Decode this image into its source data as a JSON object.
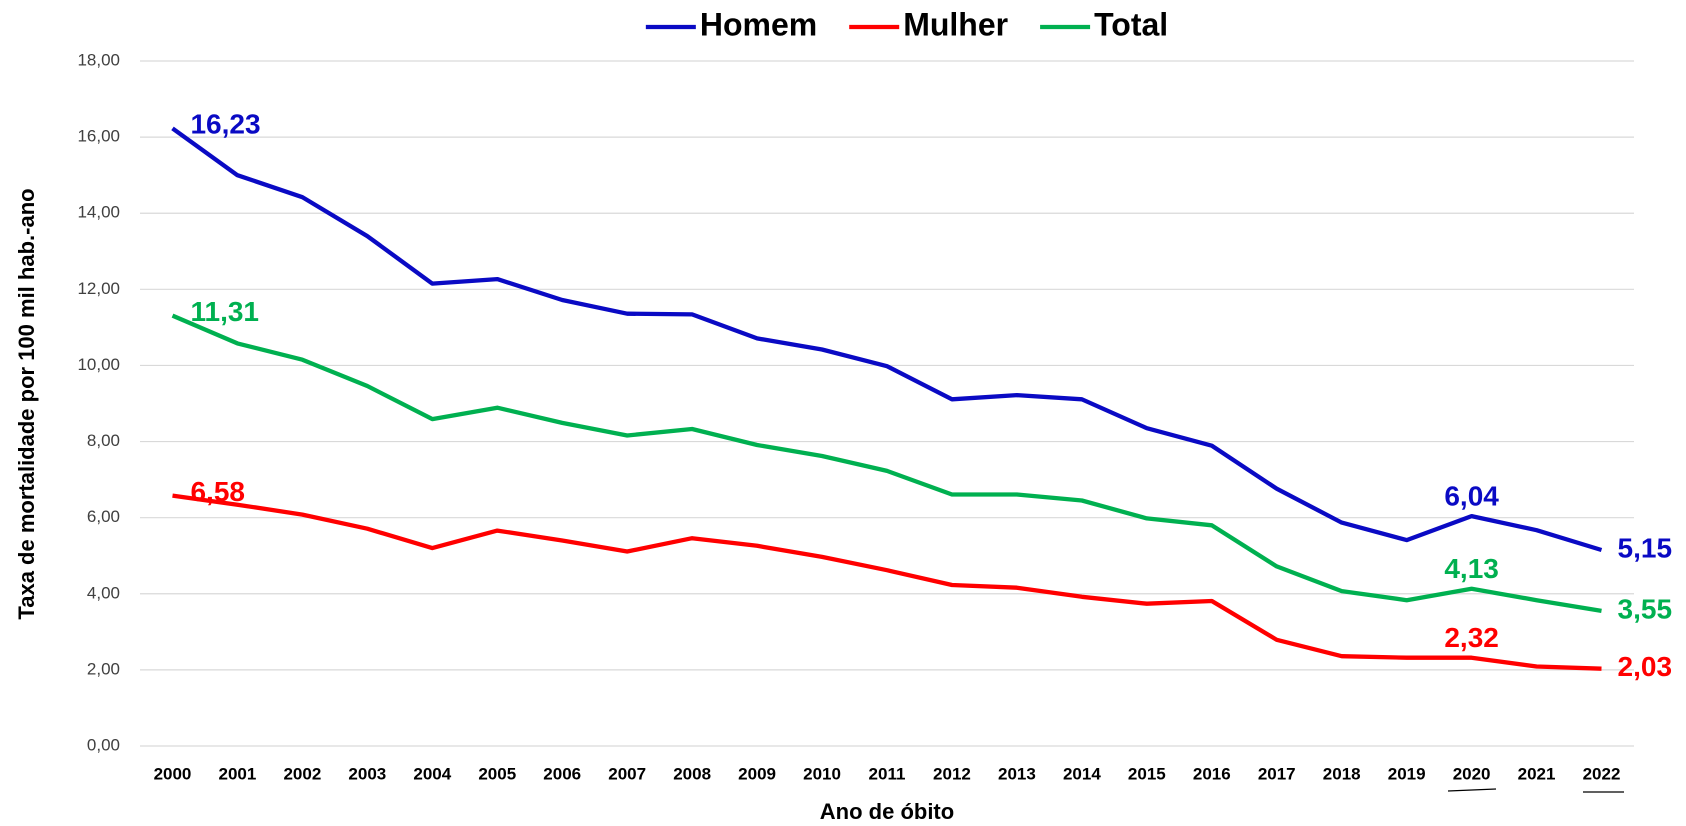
{
  "chart_data": {
    "type": "line",
    "x_label": "Ano de óbito",
    "y_label": "Taxa de mortalidade por 100 mil hab.-ano",
    "categories": [
      "2000",
      "2001",
      "2002",
      "2003",
      "2004",
      "2005",
      "2006",
      "2007",
      "2008",
      "2009",
      "2010",
      "2011",
      "2012",
      "2013",
      "2014",
      "2015",
      "2016",
      "2017",
      "2018",
      "2019",
      "2020",
      "2021",
      "2022"
    ],
    "series": [
      {
        "name": "Homem",
        "color": "#0a0ac4",
        "values": [
          16.23,
          15.0,
          14.42,
          13.4,
          12.15,
          12.27,
          11.72,
          11.36,
          11.34,
          10.71,
          10.42,
          9.98,
          9.11,
          9.22,
          9.11,
          8.35,
          7.89,
          6.76,
          5.87,
          5.41,
          6.04,
          5.67,
          5.15
        ],
        "value_labels": [
          "16,23",
          null,
          null,
          null,
          null,
          null,
          null,
          null,
          null,
          null,
          null,
          null,
          null,
          null,
          null,
          null,
          null,
          null,
          null,
          null,
          "6,04",
          null,
          "5,15"
        ]
      },
      {
        "name": "Mulher",
        "color": "#ff0000",
        "values": [
          6.58,
          6.34,
          6.08,
          5.71,
          5.2,
          5.66,
          5.4,
          5.11,
          5.46,
          5.26,
          4.97,
          4.62,
          4.23,
          4.16,
          3.92,
          3.74,
          3.81,
          2.79,
          2.36,
          2.32,
          2.32,
          2.09,
          2.03
        ],
        "value_labels": [
          "6,58",
          null,
          null,
          null,
          null,
          null,
          null,
          null,
          null,
          null,
          null,
          null,
          null,
          null,
          null,
          null,
          null,
          null,
          null,
          null,
          "2,32",
          null,
          "2,03"
        ]
      },
      {
        "name": "Total",
        "color": "#00b050",
        "values": [
          11.31,
          10.58,
          10.15,
          9.46,
          8.59,
          8.89,
          8.49,
          8.16,
          8.33,
          7.91,
          7.62,
          7.23,
          6.61,
          6.61,
          6.45,
          5.98,
          5.8,
          4.72,
          4.07,
          3.83,
          4.13,
          3.83,
          3.55
        ],
        "value_labels": [
          "11,31",
          null,
          null,
          null,
          null,
          null,
          null,
          null,
          null,
          null,
          null,
          null,
          null,
          null,
          null,
          null,
          null,
          null,
          null,
          null,
          "4,13",
          null,
          "3,55"
        ]
      }
    ],
    "ylim": [
      0,
      18
    ],
    "yticks": [
      {
        "value": 0,
        "label": "0,00"
      },
      {
        "value": 2,
        "label": "2,00"
      },
      {
        "value": 4,
        "label": "4,00"
      },
      {
        "value": 6,
        "label": "6,00"
      },
      {
        "value": 8,
        "label": "8,00"
      },
      {
        "value": 10,
        "label": "10,00"
      },
      {
        "value": 12,
        "label": "12,00"
      },
      {
        "value": 14,
        "label": "14,00"
      },
      {
        "value": 16,
        "label": "16,00"
      },
      {
        "value": 18,
        "label": "18,00"
      }
    ],
    "grid": true,
    "legend": "top"
  }
}
